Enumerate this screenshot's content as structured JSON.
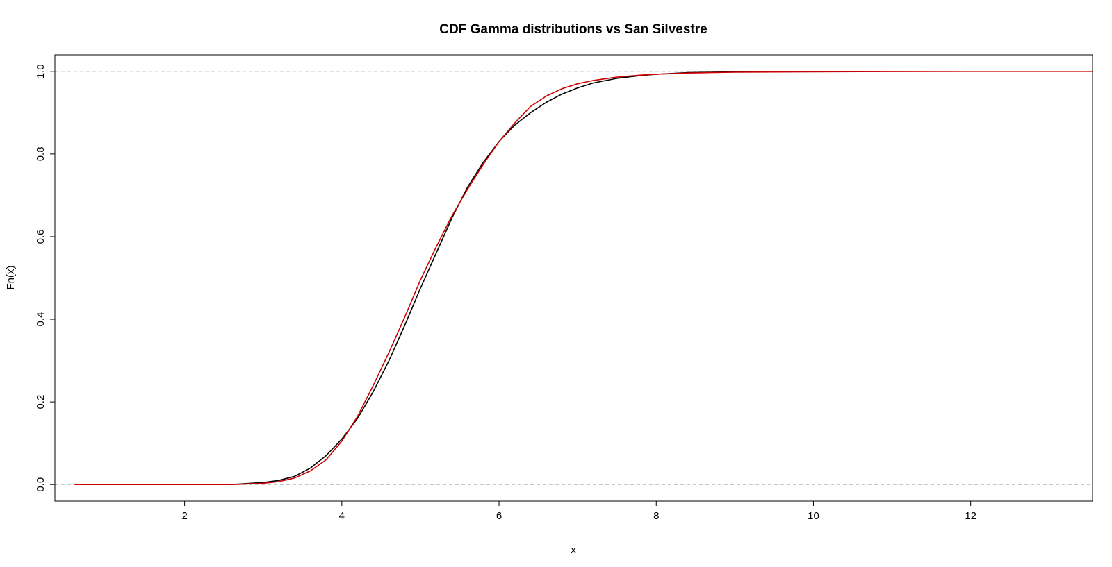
{
  "chart_data": {
    "type": "line",
    "title": "CDF Gamma distributions vs San Silvestre",
    "xlabel": "x",
    "ylabel": "Fn(x)",
    "xlim": [
      0.35,
      13.55
    ],
    "ylim": [
      -0.04,
      1.04
    ],
    "xticks": [
      2,
      4,
      6,
      8,
      10,
      12
    ],
    "yticks": [
      0.0,
      0.2,
      0.4,
      0.6,
      0.8,
      1.0
    ],
    "ytick_labels": [
      "0.0",
      "0.2",
      "0.4",
      "0.6",
      "0.8",
      "1.0"
    ],
    "hlines": [
      0,
      1
    ],
    "hline_color": "#b3b3b3",
    "series": [
      {
        "color": "#000000",
        "x": [
          2.6,
          3.0,
          3.2,
          3.4,
          3.6,
          3.8,
          4.0,
          4.2,
          4.4,
          4.6,
          4.8,
          5.0,
          5.2,
          5.4,
          5.6,
          5.8,
          6.0,
          6.2,
          6.4,
          6.6,
          6.8,
          7.0,
          7.2,
          7.5,
          7.8,
          8.0,
          8.4,
          9.0,
          10.0,
          10.85
        ],
        "y": [
          0.0,
          0.005,
          0.01,
          0.02,
          0.04,
          0.07,
          0.11,
          0.16,
          0.225,
          0.3,
          0.385,
          0.475,
          0.56,
          0.645,
          0.72,
          0.78,
          0.83,
          0.87,
          0.9,
          0.925,
          0.945,
          0.96,
          0.972,
          0.983,
          0.99,
          0.993,
          0.997,
          0.999,
          1.0,
          1.0
        ]
      },
      {
        "color": "#cc0000",
        "x": [
          0.6,
          2.6,
          3.0,
          3.2,
          3.4,
          3.6,
          3.8,
          4.0,
          4.2,
          4.4,
          4.6,
          4.8,
          5.0,
          5.2,
          5.4,
          5.6,
          5.8,
          6.0,
          6.2,
          6.4,
          6.6,
          6.8,
          7.0,
          7.2,
          7.5,
          7.8,
          8.0,
          8.4,
          9.0,
          10.0,
          12.0,
          13.55
        ],
        "y": [
          0.0,
          0.0,
          0.003,
          0.007,
          0.016,
          0.033,
          0.06,
          0.105,
          0.165,
          0.24,
          0.32,
          0.405,
          0.495,
          0.575,
          0.65,
          0.715,
          0.775,
          0.83,
          0.875,
          0.915,
          0.94,
          0.958,
          0.97,
          0.978,
          0.986,
          0.991,
          0.993,
          0.996,
          0.998,
          0.999,
          1.0,
          1.0
        ]
      }
    ],
    "grid": false,
    "legend": "none"
  }
}
